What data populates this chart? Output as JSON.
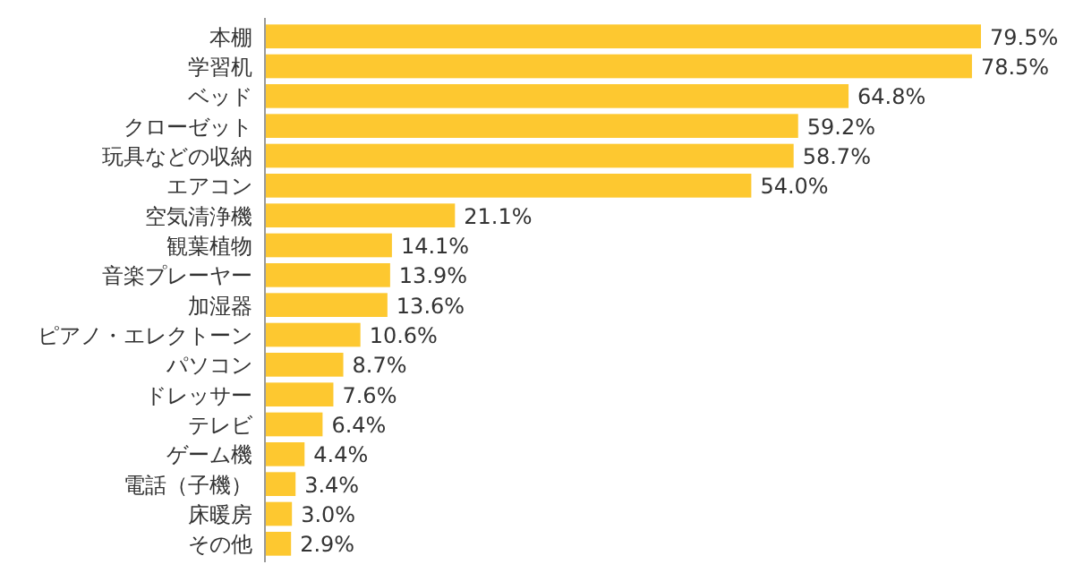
{
  "chart_data": {
    "type": "bar",
    "orientation": "horizontal",
    "data_labels": true,
    "color": "#fdc830",
    "categories": [
      "本棚",
      "学習机",
      "ベッド",
      "クローゼット",
      "玩具などの収納",
      "エアコン",
      "空気清浄機",
      "観葉植物",
      "音楽プレーヤー",
      "加湿器",
      "ピアノ・エレクトーン",
      "パソコン",
      "ドレッサー",
      "テレビ",
      "ゲーム機",
      "電話（子機）",
      "床暖房",
      "その他"
    ],
    "values": [
      79.5,
      78.5,
      64.8,
      59.2,
      58.7,
      54.0,
      21.1,
      14.1,
      13.9,
      13.6,
      10.6,
      8.7,
      7.6,
      6.4,
      4.4,
      3.4,
      3.0,
      2.9
    ],
    "value_labels": [
      "79.5%",
      "78.5%",
      "64.8%",
      "59.2%",
      "58.7%",
      "54.0%",
      "21.1%",
      "14.1%",
      "13.9%",
      "13.6%",
      "10.6%",
      "8.7%",
      "7.6%",
      "6.4%",
      "4.4%",
      "3.4%",
      "3.0%",
      "2.9%"
    ]
  }
}
